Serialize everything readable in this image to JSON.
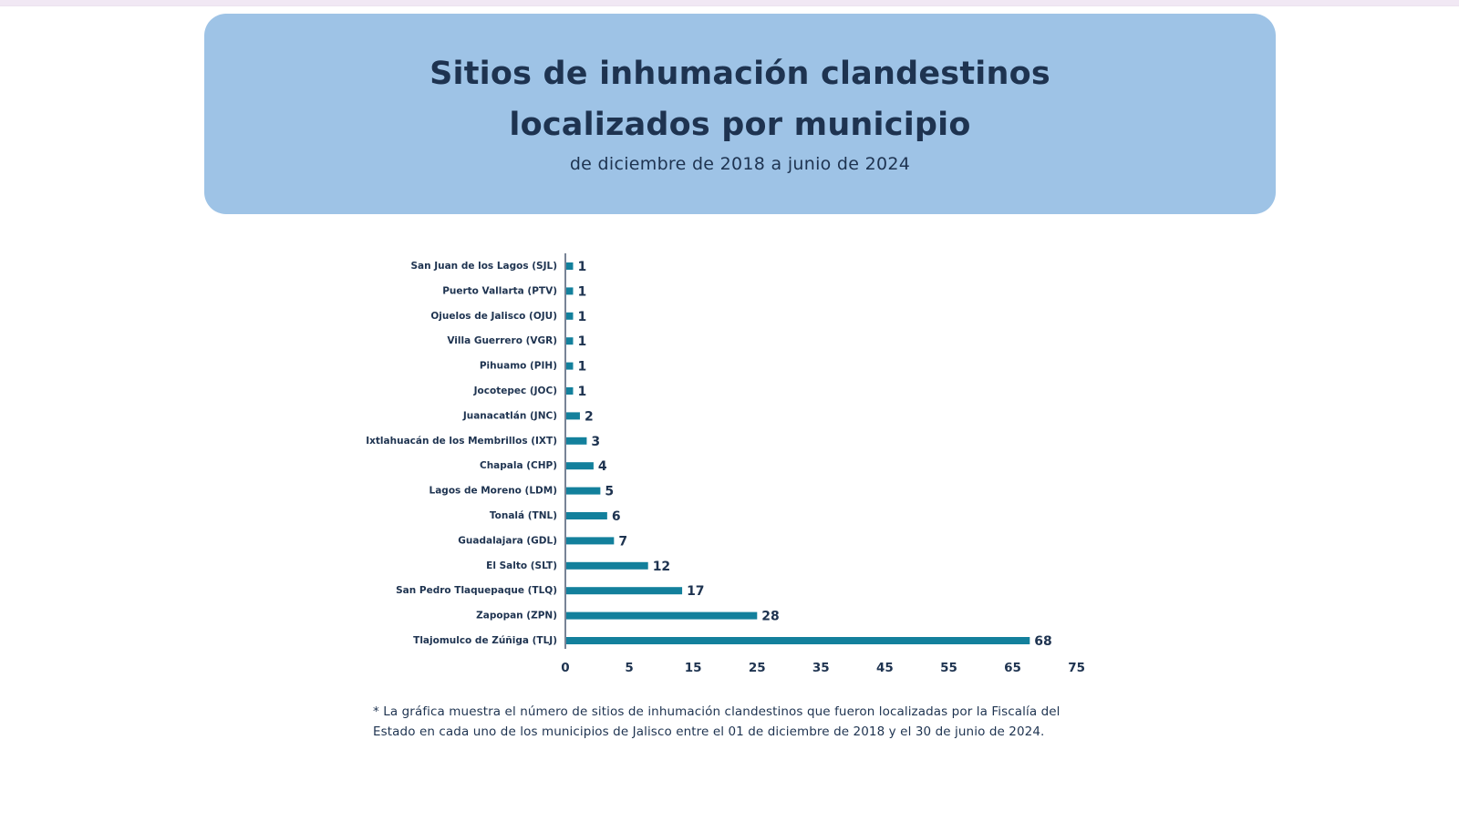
{
  "header": {
    "title_line1": "Sitios de inhumación clandestinos",
    "title_line2": "localizados por municipio",
    "subtitle": "de diciembre de 2018 a junio de 2024"
  },
  "chart_data": {
    "type": "bar",
    "orientation": "horizontal",
    "categories": [
      "San Juan de los Lagos (SJL)",
      "Puerto Vallarta (PTV)",
      "Ojuelos de Jalisco (OJU)",
      "Villa Guerrero (VGR)",
      "Pihuamo (PIH)",
      "Jocotepec (JOC)",
      "Juanacatlán (JNC)",
      "Ixtlahuacán de los Membrillos (IXT)",
      "Chapala (CHP)",
      "Lagos de Moreno (LDM)",
      "Tonalá (TNL)",
      "Guadalajara (GDL)",
      "El Salto (SLT)",
      "San Pedro Tlaquepaque (TLQ)",
      "Zapopan (ZPN)",
      "Tlajomulco de Zúñiga (TLJ)"
    ],
    "values": [
      1,
      1,
      1,
      1,
      1,
      1,
      2,
      3,
      4,
      5,
      6,
      7,
      12,
      17,
      28,
      68
    ],
    "x_ticks": [
      "0",
      "5",
      "15",
      "25",
      "35",
      "45",
      "55",
      "65",
      "75"
    ],
    "xlim": [
      0,
      75
    ],
    "bar_color": "#13809c",
    "grid": false,
    "legend": "none"
  },
  "footnote": "* La gráfica muestra el número de sitios de inhumación clandestinos que fueron localizadas por la Fiscalía del Estado en cada uno de los municipios de Jalisco entre el 01 de diciembre de 2018 y el 30 de junio de 2024."
}
